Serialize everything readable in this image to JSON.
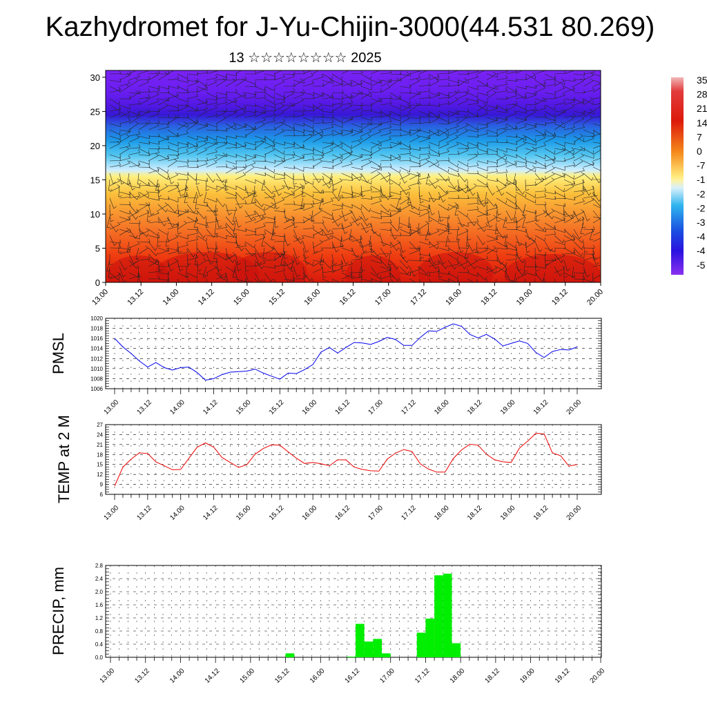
{
  "title": "Kazhydromet for J-Yu-Chijin-3000(44.531 80.269)",
  "subtitle": "13 ☆☆☆☆☆☆☆☆ 2025",
  "date_labels": [
    "13.00",
    "13.12",
    "14.00",
    "14.12",
    "15.00",
    "15.12",
    "16.00",
    "16.12",
    "17.00",
    "17.12",
    "18.00",
    "18.12",
    "19.00",
    "19.12",
    "20.00"
  ],
  "colors": {
    "pmsl_line": "#0000ee",
    "temp_line": "#ee0000",
    "precip_bar": "#00ee00",
    "grid": "#000000"
  },
  "chart_data": [
    {
      "type": "heatmap",
      "name": "temperature-cross-section",
      "x_ticks": [
        "13.00",
        "13.12",
        "14.00",
        "14.12",
        "15.00",
        "15.12",
        "16.00",
        "16.12",
        "17.00",
        "17.12",
        "18.00",
        "18.12",
        "19.00",
        "19.12",
        "20.00"
      ],
      "y_ticks": [
        0,
        5,
        10,
        15,
        20,
        25,
        30
      ],
      "ylim": [
        0,
        31
      ],
      "colorbar_labels": [
        "35",
        "28",
        "21",
        "14",
        "7",
        "0",
        "-7",
        "-1",
        "-2",
        "-2",
        "-3",
        "-4",
        "-4",
        "-5"
      ],
      "overlay": "wind barbs"
    },
    {
      "type": "line",
      "ylabel": "PMSL",
      "ylim": [
        1006,
        1020
      ],
      "y_ticks": [
        1006,
        1008,
        1010,
        1012,
        1014,
        1016,
        1018,
        1020
      ],
      "x_ticks": [
        "13.00",
        "13.12",
        "14.00",
        "14.12",
        "15.00",
        "15.12",
        "16.00",
        "16.12",
        "17.00",
        "17.12",
        "18.00",
        "18.12",
        "19.00",
        "19.12",
        "20.00"
      ],
      "x_step_hours": 3,
      "values": [
        1016,
        1014.3,
        1013,
        1011.5,
        1010.3,
        1011.2,
        1010.2,
        1009.7,
        1010.2,
        1010.3,
        1009.2,
        1007.7,
        1008,
        1008.8,
        1009.3,
        1009.4,
        1009.5,
        1009.9,
        1009.1,
        1008.5,
        1007.9,
        1009.1,
        1009,
        1009.8,
        1010.8,
        1013.3,
        1014.2,
        1013.1,
        1014.2,
        1015.2,
        1015.1,
        1014.8,
        1015.4,
        1016.2,
        1015.8,
        1014.6,
        1014.6,
        1016.2,
        1017.5,
        1017.4,
        1018.2,
        1018.9,
        1018.4,
        1016.8,
        1016.1,
        1016.8,
        1015.9,
        1014.5,
        1015,
        1015.5,
        1015,
        1013.2,
        1012.2,
        1013.4,
        1013.8,
        1013.7,
        1014.3
      ]
    },
    {
      "type": "line",
      "ylabel": "TEMP at 2 M",
      "ylim": [
        6,
        27
      ],
      "y_ticks": [
        6,
        9,
        12,
        15,
        18,
        21,
        24,
        27
      ],
      "x_ticks": [
        "13.00",
        "13.12",
        "14.00",
        "14.12",
        "15.00",
        "15.12",
        "16.00",
        "16.12",
        "17.00",
        "17.12",
        "18.00",
        "18.12",
        "19.00",
        "19.12",
        "20.00"
      ],
      "x_step_hours": 3,
      "values": [
        8.5,
        14.2,
        16.6,
        18.5,
        18.3,
        15.8,
        14.6,
        13.4,
        13.5,
        16.9,
        20.2,
        21.5,
        20.2,
        17.1,
        15.6,
        14.1,
        14.9,
        18.1,
        19.8,
        20.9,
        20.8,
        18.8,
        16.9,
        15.3,
        15.6,
        15.2,
        14.6,
        16.4,
        16.4,
        14.2,
        13.5,
        13.1,
        13,
        16.6,
        18.4,
        19.5,
        18.9,
        15.2,
        13.6,
        12.7,
        12.7,
        16.8,
        19.4,
        21.1,
        20.8,
        18.1,
        16.4,
        15.8,
        15.6,
        19.9,
        22,
        24.4,
        24.2,
        18.5,
        17.6,
        14.5,
        15
      ]
    },
    {
      "type": "bar",
      "ylabel": "PRECIP, mm",
      "ylim": [
        0,
        2.8
      ],
      "y_ticks": [
        "0.0",
        "0.4",
        "0.8",
        "1.2",
        "1.6",
        "2.0",
        "2.4",
        "2.8"
      ],
      "x_ticks": [
        "13.00",
        "13.12",
        "14.00",
        "14.12",
        "15.00",
        "15.12",
        "16.00",
        "16.12",
        "17.00",
        "17.12",
        "18.00",
        "18.12",
        "19.00",
        "19.12",
        "20.00"
      ],
      "x_step_hours": 3,
      "values": [
        0,
        0,
        0,
        0,
        0,
        0,
        0,
        0,
        0,
        0,
        0,
        0,
        0,
        0,
        0,
        0,
        0,
        0,
        0,
        0,
        0.12,
        0,
        0,
        0,
        0,
        0,
        0,
        0.02,
        1.02,
        0.48,
        0.56,
        0.12,
        0,
        0,
        0,
        0.75,
        1.18,
        2.5,
        2.55,
        0.43,
        0,
        0,
        0,
        0,
        0,
        0,
        0,
        0,
        0,
        0,
        0,
        0,
        0,
        0,
        0,
        0
      ]
    }
  ]
}
